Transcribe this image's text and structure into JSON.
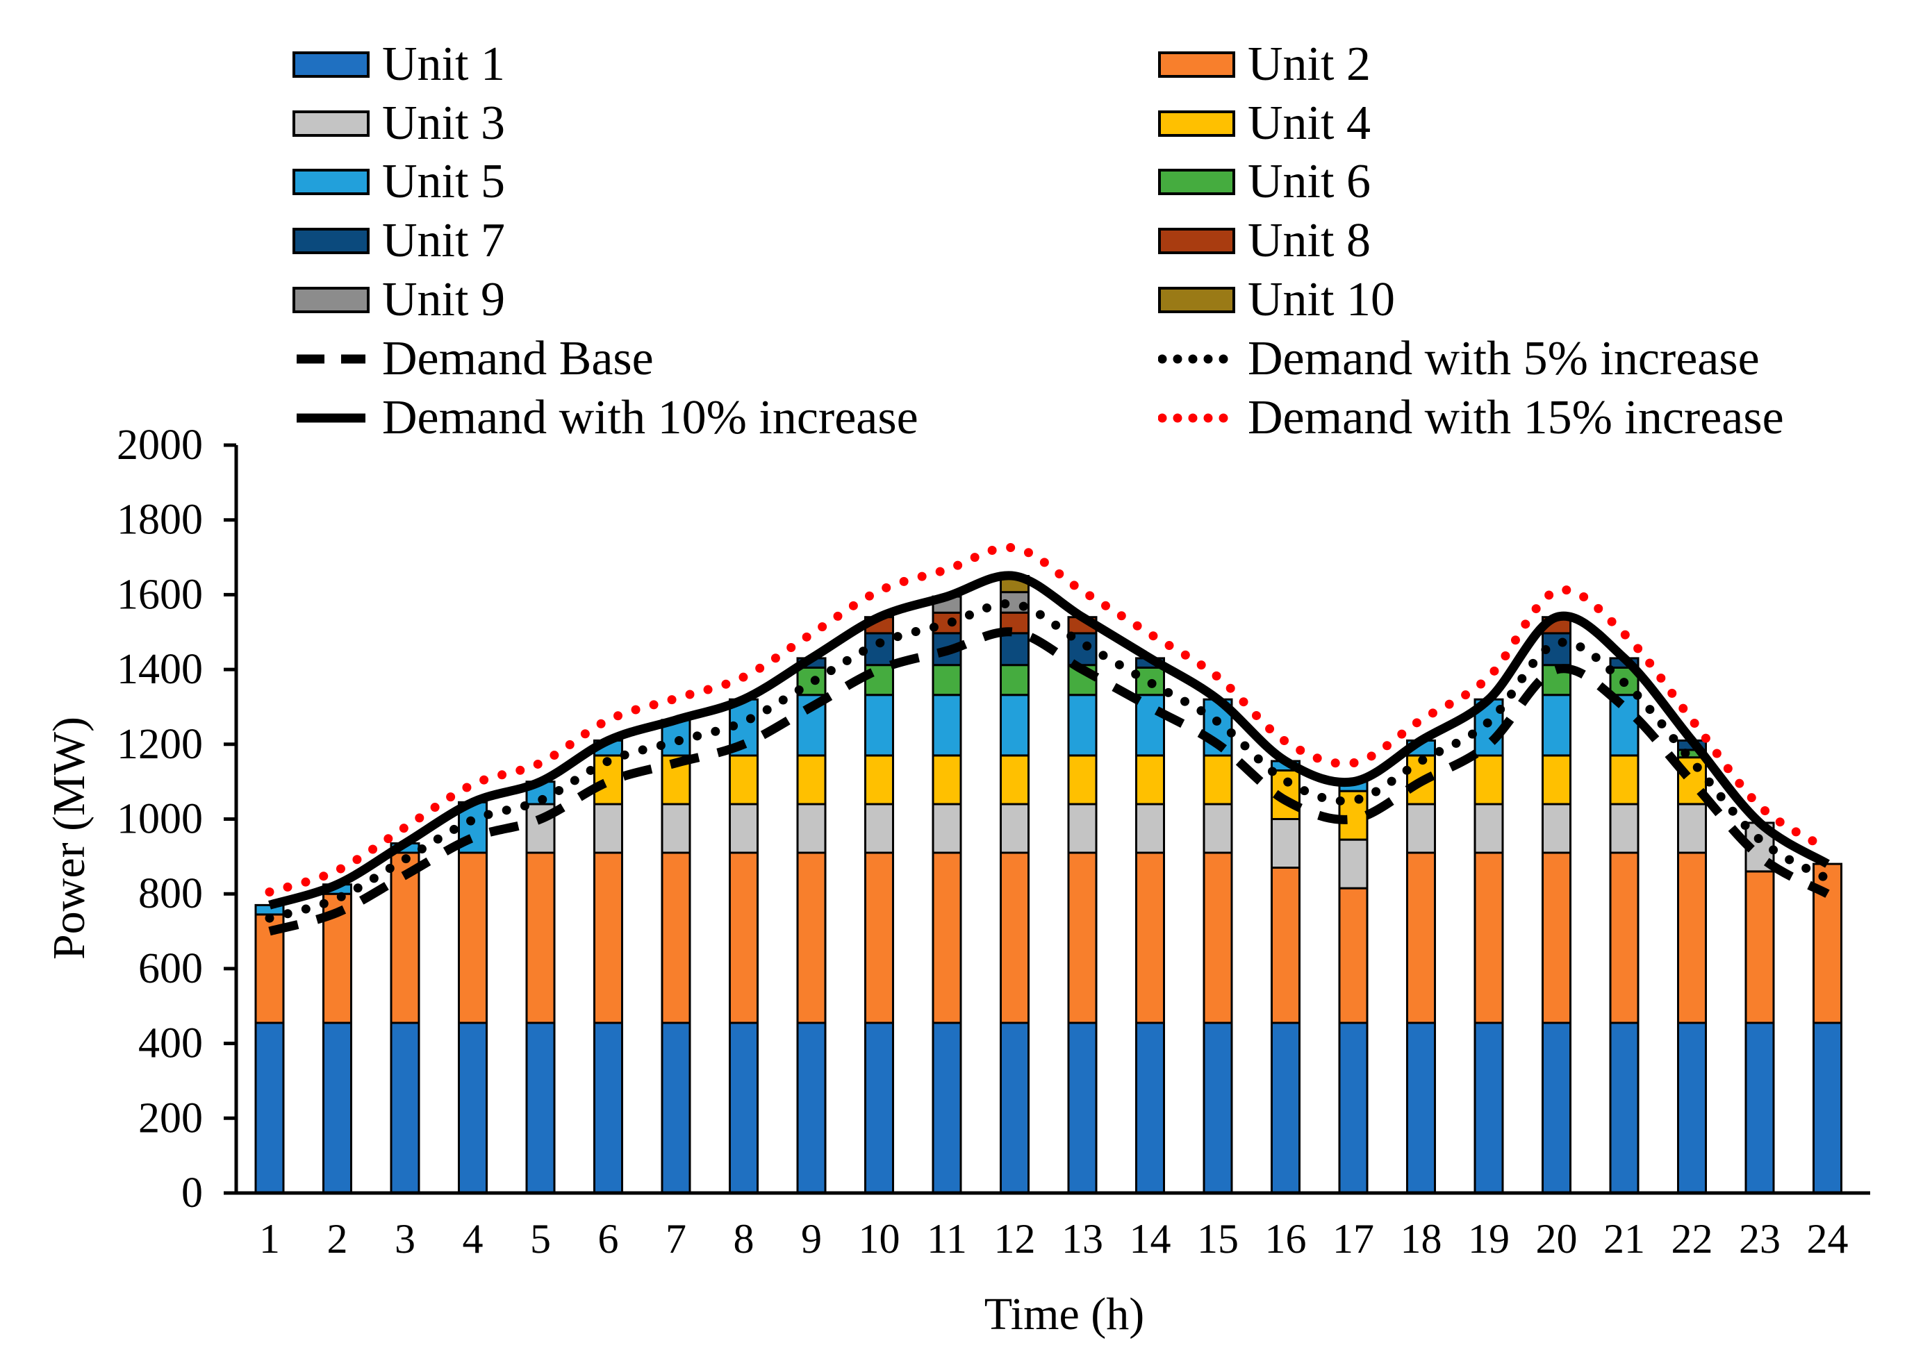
{
  "page": {
    "background": "#FFFFFF"
  },
  "legend": {
    "items": [
      {
        "label": "Unit 1",
        "kind": "swatch",
        "color": "#1F70C1",
        "col": 0,
        "row": 0
      },
      {
        "label": "Unit 2",
        "kind": "swatch",
        "color": "#F87F2C",
        "col": 1,
        "row": 0
      },
      {
        "label": "Unit 3",
        "kind": "swatch",
        "color": "#C4C4C4",
        "col": 0,
        "row": 1
      },
      {
        "label": "Unit 4",
        "kind": "swatch",
        "color": "#FFC000",
        "col": 1,
        "row": 1
      },
      {
        "label": "Unit 5",
        "kind": "swatch",
        "color": "#22A0DB",
        "col": 0,
        "row": 2
      },
      {
        "label": "Unit 6",
        "kind": "swatch",
        "color": "#45AC3F",
        "col": 1,
        "row": 2
      },
      {
        "label": "Unit 7",
        "kind": "swatch",
        "color": "#0B4A7D",
        "col": 0,
        "row": 3
      },
      {
        "label": "Unit 8",
        "kind": "swatch",
        "color": "#A93C10",
        "col": 1,
        "row": 3
      },
      {
        "label": "Unit 9",
        "kind": "swatch",
        "color": "#8C8C8C",
        "col": 0,
        "row": 4
      },
      {
        "label": "Unit 10",
        "kind": "swatch",
        "color": "#9A7A16",
        "col": 1,
        "row": 4
      },
      {
        "label": "Demand Base",
        "kind": "dashed",
        "color": "#000000",
        "col": 0,
        "row": 5
      },
      {
        "label": "Demand with 5% increase",
        "kind": "dotted",
        "color": "#000000",
        "col": 1,
        "row": 5
      },
      {
        "label": "Demand with 10% increase",
        "kind": "solid",
        "color": "#000000",
        "col": 0,
        "row": 6
      },
      {
        "label": "Demand with 15% increase",
        "kind": "dotted",
        "color": "#FF0000",
        "col": 1,
        "row": 6
      }
    ]
  },
  "axes": {
    "x_label": "Time (h)",
    "y_label": "Power (MW)",
    "y_ticks": [
      0,
      200,
      400,
      600,
      800,
      1000,
      1200,
      1400,
      1600,
      1800,
      2000
    ],
    "x_ticks": [
      1,
      2,
      3,
      4,
      5,
      6,
      7,
      8,
      9,
      10,
      11,
      12,
      13,
      14,
      15,
      16,
      17,
      18,
      19,
      20,
      21,
      22,
      23,
      24
    ]
  },
  "chart_data": {
    "type": "bar",
    "stacked": true,
    "title": "",
    "xlabel": "Time (h)",
    "ylabel": "Power (MW)",
    "ylim": [
      0,
      2000
    ],
    "ytick_step": 200,
    "grid": false,
    "legend_position": "top",
    "categories": [
      1,
      2,
      3,
      4,
      5,
      6,
      7,
      8,
      9,
      10,
      11,
      12,
      13,
      14,
      15,
      16,
      17,
      18,
      19,
      20,
      21,
      22,
      23,
      24
    ],
    "series": [
      {
        "name": "Unit 1",
        "color": "#1F70C1",
        "values": [
          455,
          455,
          455,
          455,
          455,
          455,
          455,
          455,
          455,
          455,
          455,
          455,
          455,
          455,
          455,
          455,
          455,
          455,
          455,
          455,
          455,
          455,
          455,
          455
        ]
      },
      {
        "name": "Unit 2",
        "color": "#F87F2C",
        "values": [
          290,
          345,
          455,
          455,
          455,
          455,
          455,
          455,
          455,
          455,
          455,
          455,
          455,
          455,
          455,
          415,
          360,
          455,
          455,
          455,
          455,
          455,
          405,
          425
        ]
      },
      {
        "name": "Unit 3",
        "color": "#C4C4C4",
        "values": [
          0,
          0,
          0,
          0,
          130,
          130,
          130,
          130,
          130,
          130,
          130,
          130,
          130,
          130,
          130,
          130,
          130,
          130,
          130,
          130,
          130,
          130,
          130,
          0
        ]
      },
      {
        "name": "Unit 4",
        "color": "#FFC000",
        "values": [
          0,
          0,
          0,
          0,
          0,
          130,
          130,
          130,
          130,
          130,
          130,
          130,
          130,
          130,
          130,
          130,
          130,
          130,
          130,
          130,
          130,
          125,
          0,
          0
        ]
      },
      {
        "name": "Unit 5",
        "color": "#22A0DB",
        "values": [
          25,
          25,
          25,
          135,
          60,
          40,
          95,
          150,
          162,
          162,
          162,
          162,
          162,
          162,
          150,
          25,
          25,
          40,
          150,
          162,
          162,
          0,
          0,
          0
        ]
      },
      {
        "name": "Unit 6",
        "color": "#45AC3F",
        "values": [
          0,
          0,
          0,
          0,
          0,
          0,
          0,
          0,
          73,
          80,
          80,
          80,
          80,
          73,
          0,
          0,
          0,
          0,
          0,
          80,
          73,
          20,
          0,
          0
        ]
      },
      {
        "name": "Unit 7",
        "color": "#0B4A7D",
        "values": [
          0,
          0,
          0,
          0,
          0,
          0,
          0,
          0,
          25,
          85,
          85,
          85,
          85,
          25,
          0,
          0,
          0,
          0,
          0,
          85,
          25,
          25,
          0,
          0
        ]
      },
      {
        "name": "Unit 8",
        "color": "#A93C10",
        "values": [
          0,
          0,
          0,
          0,
          0,
          0,
          0,
          0,
          0,
          43,
          55,
          55,
          43,
          0,
          0,
          0,
          0,
          0,
          0,
          43,
          0,
          0,
          0,
          0
        ]
      },
      {
        "name": "Unit 9",
        "color": "#8C8C8C",
        "values": [
          0,
          0,
          0,
          0,
          0,
          0,
          0,
          0,
          0,
          0,
          43,
          55,
          0,
          0,
          0,
          0,
          0,
          0,
          0,
          0,
          0,
          0,
          0,
          0
        ]
      },
      {
        "name": "Unit 10",
        "color": "#9A7A16",
        "values": [
          0,
          0,
          0,
          0,
          0,
          0,
          0,
          0,
          0,
          0,
          0,
          43,
          0,
          0,
          0,
          0,
          0,
          0,
          0,
          0,
          0,
          0,
          0,
          0
        ]
      }
    ],
    "lines": [
      {
        "name": "Demand Base",
        "style": "dashed",
        "color": "#000000",
        "values": [
          700,
          750,
          850,
          950,
          1000,
          1100,
          1150,
          1200,
          1300,
          1400,
          1450,
          1500,
          1400,
          1300,
          1200,
          1050,
          1000,
          1100,
          1200,
          1400,
          1300,
          1100,
          900,
          800
        ]
      },
      {
        "name": "Demand with 5% increase",
        "style": "dotted",
        "color": "#000000",
        "values": [
          735,
          787.5,
          892.5,
          997.5,
          1050,
          1155,
          1207.5,
          1260,
          1365,
          1470,
          1522.5,
          1575,
          1470,
          1365,
          1260,
          1102.5,
          1050,
          1155,
          1260,
          1470,
          1365,
          1155,
          945,
          840
        ]
      },
      {
        "name": "Demand with 10% increase",
        "style": "solid",
        "color": "#000000",
        "values": [
          770,
          825,
          935,
          1045,
          1100,
          1210,
          1265,
          1320,
          1430,
          1540,
          1595,
          1650,
          1540,
          1430,
          1320,
          1155,
          1100,
          1210,
          1320,
          1540,
          1430,
          1210,
          990,
          880
        ]
      },
      {
        "name": "Demand with 15% increase",
        "style": "dotted",
        "color": "#FF0000",
        "values": [
          805,
          862.5,
          977.5,
          1092.5,
          1150,
          1265,
          1322.5,
          1380,
          1495,
          1610,
          1667.5,
          1725,
          1610,
          1495,
          1380,
          1207.5,
          1150,
          1265,
          1380,
          1610,
          1495,
          1265,
          1035,
          920
        ]
      }
    ]
  }
}
